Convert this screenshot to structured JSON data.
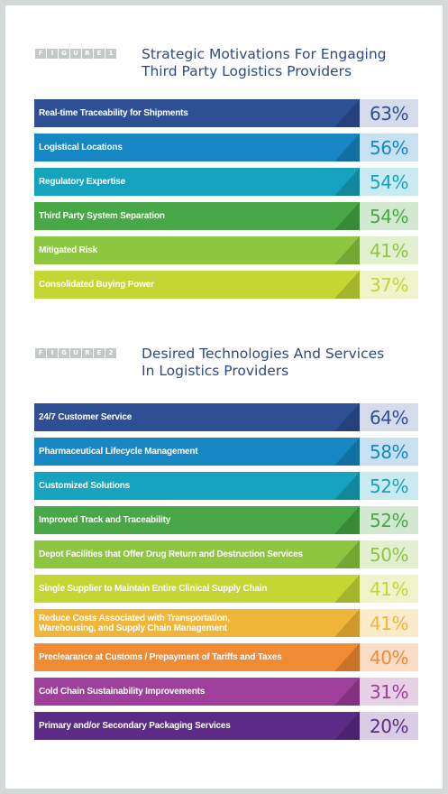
{
  "figures": [
    {
      "label": [
        "F",
        "I",
        "G",
        "U",
        "R",
        "E",
        "1"
      ],
      "title": "Strategic Motivations For Engaging\nThird Party Logistics Providers"
    },
    {
      "label": [
        "F",
        "I",
        "G",
        "U",
        "R",
        "E",
        "2"
      ],
      "title": "Desired Technologies And Services\nIn Logistics Providers"
    }
  ],
  "chart_data": [
    {
      "type": "bar",
      "title": "Strategic Motivations For Engaging Third Party Logistics Providers",
      "categories": [
        "Real-time Traceability for Shipments",
        "Logistical Locations",
        "Regulatory Expertise",
        "Third Party System Separation",
        "Mitigated Risk",
        "Consolidated Buying Power"
      ],
      "values": [
        63,
        56,
        54,
        54,
        41,
        37
      ],
      "value_labels": [
        "63%",
        "56%",
        "54%",
        "54%",
        "41%",
        "37%"
      ],
      "colors": [
        "#2f4f95",
        "#1787c4",
        "#16a3bd",
        "#48a746",
        "#8dc63f",
        "#c3d633"
      ],
      "shade_colors": [
        "#24407d",
        "#126fa3",
        "#11889e",
        "#378a36",
        "#74a632",
        "#a3b52a"
      ],
      "pct_bg": [
        "#d4dbea",
        "#c8e1f0",
        "#c8eaf0",
        "#d3e8d0",
        "#e2f0cf",
        "#eef3c9"
      ],
      "pct_color": [
        "#2f4f95",
        "#1787c4",
        "#16a3bd",
        "#48a746",
        "#8dc63f",
        "#c3d633"
      ]
    },
    {
      "type": "bar",
      "title": "Desired Technologies And Services In Logistics Providers",
      "categories": [
        "24/7 Customer Service",
        "Pharmaceutical Lifecycle Management",
        "Customized Solutions",
        "Improved Track and Traceability",
        "Depot Facilities that Offer Drug Return and Destruction Services",
        "Single Supplier to Maintain Entire Clinical Supply Chain",
        "Reduce Costs Associated with Transportation,\nWarehousing, and Supply Chain Management",
        "Preclearance at Customs / Prepayment of Tariffs and Taxes",
        "Cold Chain Sustainability Improvements",
        "Primary and/or Secondary Packaging Services"
      ],
      "values": [
        64,
        58,
        52,
        52,
        50,
        41,
        41,
        40,
        31,
        20
      ],
      "value_labels": [
        "64%",
        "58%",
        "52%",
        "52%",
        "50%",
        "41%",
        "41%",
        "40%",
        "31%",
        "20%"
      ],
      "colors": [
        "#2f4f95",
        "#1787c4",
        "#16a3bd",
        "#48a746",
        "#8dc63f",
        "#c3d633",
        "#f0b63a",
        "#ef8a35",
        "#9d3f9b",
        "#5b2b86"
      ],
      "shade_colors": [
        "#24407d",
        "#126fa3",
        "#11889e",
        "#378a36",
        "#74a632",
        "#a3b52a",
        "#cf9a2c",
        "#cc7228",
        "#83327f",
        "#4a226f"
      ],
      "pct_bg": [
        "#d4dbea",
        "#c8e1f0",
        "#c8eaf0",
        "#d3e8d0",
        "#e2f0cf",
        "#eef3c9",
        "#fbecc9",
        "#fbdcc4",
        "#e6d0e5",
        "#d9cde5"
      ],
      "pct_color": [
        "#2f4f95",
        "#1787c4",
        "#16a3bd",
        "#48a746",
        "#8dc63f",
        "#c3d633",
        "#f0b63a",
        "#ef8a35",
        "#9d3f9b",
        "#5b2b86"
      ]
    }
  ]
}
